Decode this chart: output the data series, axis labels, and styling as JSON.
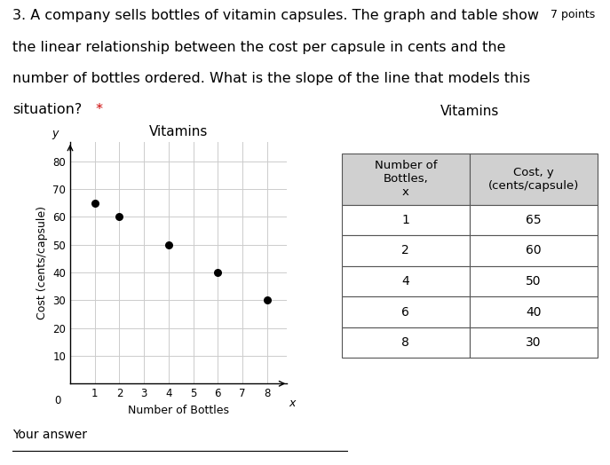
{
  "question_line1": "3. A company sells bottles of vitamin capsules. The graph and table show",
  "question_line2": "the linear relationship between the cost per capsule in cents and the",
  "question_line3": "number of bottles ordered. What is the slope of the line that models this",
  "question_line4": "situation?",
  "asterisk": " *",
  "points_text": "7 points",
  "asterisk_color": "#cc0000",
  "graph_title": "Vitamins",
  "graph_xlabel": "Number of Bottles",
  "graph_ylabel": "Cost (cents/capsule)",
  "graph_x_arrow_label": "x",
  "graph_y_arrow_label": "y",
  "graph_xlim": [
    0,
    8.8
  ],
  "graph_ylim": [
    0,
    87
  ],
  "graph_xticks": [
    1,
    2,
    3,
    4,
    5,
    6,
    7,
    8
  ],
  "graph_yticks": [
    10,
    20,
    30,
    40,
    50,
    60,
    70,
    80
  ],
  "scatter_x": [
    1,
    2,
    4,
    6,
    8
  ],
  "scatter_y": [
    65,
    60,
    50,
    40,
    30
  ],
  "scatter_color": "#000000",
  "scatter_size": 30,
  "grid_color": "#cccccc",
  "grid_linewidth": 0.7,
  "table_title": "Vitamins",
  "table_col1_header": "Number of\nBottles,\nx",
  "table_col2_header": "Cost, y\n(cents/capsule)",
  "table_data_x": [
    1,
    2,
    4,
    6,
    8
  ],
  "table_data_y": [
    65,
    60,
    50,
    40,
    30
  ],
  "table_header_bg": "#d0d0d0",
  "table_cell_bg": "#ffffff",
  "table_border_color": "#555555",
  "your_answer_text": "Your answer",
  "background_color": "#ffffff",
  "text_fontsize": 11.5,
  "points_fontsize": 9,
  "graph_title_fontsize": 11,
  "axis_label_fontsize": 9,
  "tick_fontsize": 8.5,
  "your_answer_fontsize": 10
}
